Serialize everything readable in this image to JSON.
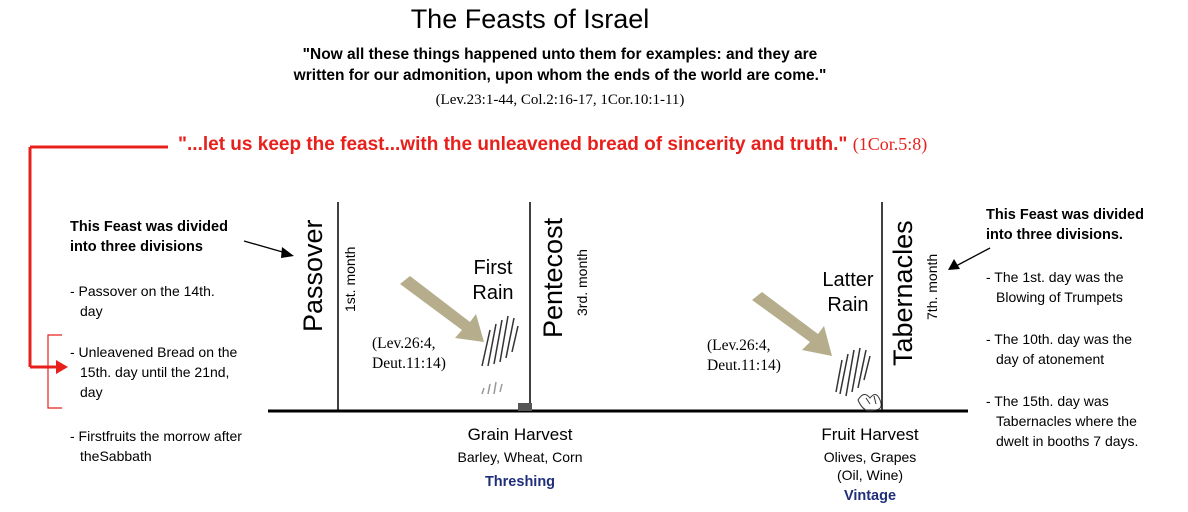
{
  "title": "The Feasts of Israel",
  "quote_line1": "\"Now all these things happened unto them for examples: and they are",
  "quote_line2": "written for our admonition, upon whom the ends of the world are come.\"",
  "quote_refs": "(Lev.23:1-44, Col.2:16-17, 1Cor.10:1-11)",
  "red_quote": "\"...let us keep the feast...with the unleavened bread of sincerity and truth.\"",
  "red_ref": "(1Cor.5:8)",
  "left_note": {
    "heading_line1": "This Feast was divided",
    "heading_line2": "into three divisions",
    "items": [
      {
        "line1": "- Passover on the 14th.",
        "line2": "day"
      },
      {
        "line1": "- Unleavened Bread on the",
        "line2": "15th. day until the 21nd,",
        "line3": "day"
      },
      {
        "line1": "- Firstfruits the morrow after",
        "line2": "theSabbath"
      }
    ]
  },
  "right_note": {
    "heading_line1": "This Feast was divided",
    "heading_line2": "into three divisions.",
    "items": [
      {
        "line1": "- The 1st. day was the",
        "line2": "Blowing of Trumpets"
      },
      {
        "line1": "- The 10th. day was the",
        "line2": "day of atonement"
      },
      {
        "line1": "- The 15th. day was",
        "line2": "Tabernacles where the",
        "line3": "dwelt in booths 7 days."
      }
    ]
  },
  "feasts": {
    "passover": {
      "name": "Passover",
      "month": "1st. month"
    },
    "pentecost": {
      "name": "Pentecost",
      "month": "3rd. month"
    },
    "tabernacles": {
      "name": "Tabernacles",
      "month": "7th. month"
    }
  },
  "first_rain": {
    "line1": "First",
    "line2": "Rain",
    "ref_line1": "(Lev.26:4,",
    "ref_line2": "Deut.11:14)"
  },
  "latter_rain": {
    "line1": "Latter",
    "line2": "Rain",
    "ref_line1": "(Lev.26:4,",
    "ref_line2": "Deut.11:14)"
  },
  "grain_harvest": {
    "title": "Grain Harvest",
    "crops": "Barley, Wheat, Corn",
    "season": "Threshing"
  },
  "fruit_harvest": {
    "title": "Fruit Harvest",
    "crops_line1": "Olives, Grapes",
    "crops_line2": "(Oil, Wine)",
    "season": "Vintage"
  },
  "colors": {
    "red": "#e8201c",
    "season_blue": "#1f2f7a",
    "arrow_tan": "#b5ad8c"
  }
}
